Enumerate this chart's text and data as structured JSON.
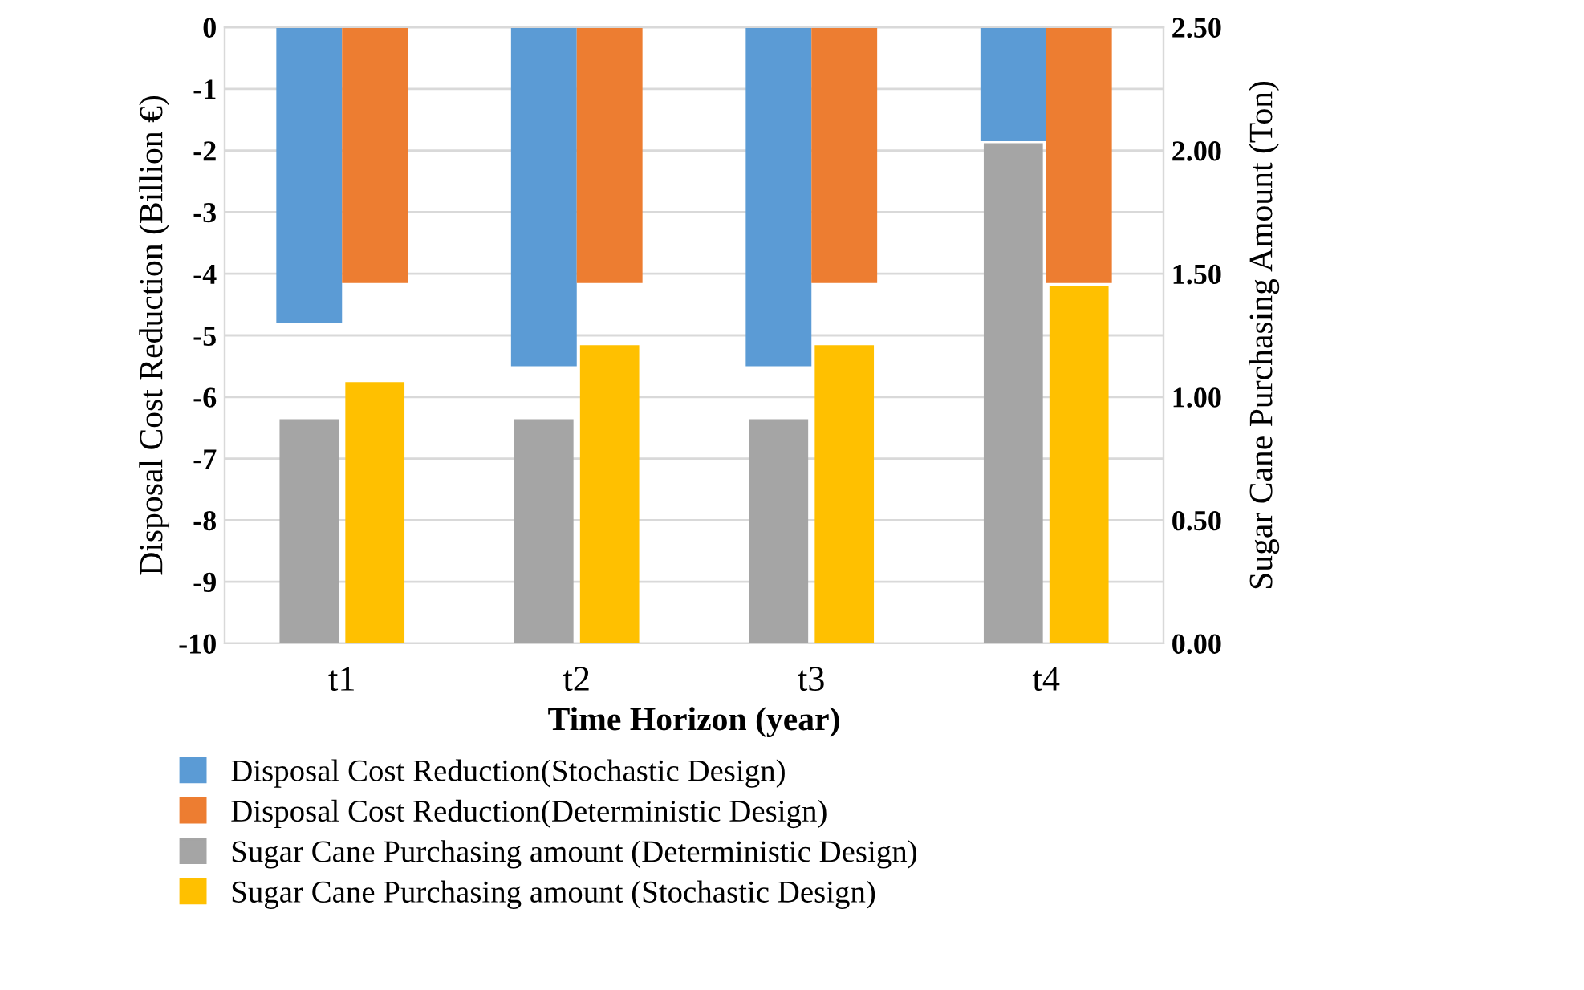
{
  "chart_data": {
    "type": "bar",
    "xlabel": "Time Horizon (year)",
    "ylabel": "Disposal Cost Reduction (Billion €)",
    "y2label": "Sugar Cane Purchasing Amount (Ton)",
    "categories": [
      "t1",
      "t2",
      "t3",
      "t4"
    ],
    "series": [
      {
        "name": "Disposal Cost Reduction(Stochastic Design)",
        "color": "#5b9bd5",
        "values": [
          -4.8,
          -5.5,
          -5.5,
          -1.85
        ]
      },
      {
        "name": "Disposal Cost Reduction(Deterministic Design)",
        "color": "#ed7d31",
        "values": [
          -4.15,
          -4.15,
          -4.15,
          -4.15
        ]
      },
      {
        "name": "Sugar Cane Purchasing amount (Deterministic Design)",
        "color": "#a5a5a5",
        "axis": "y2",
        "values": [
          0.91,
          0.91,
          0.91,
          2.03
        ]
      },
      {
        "name": "Sugar Cane Purchasing amount (Stochastic Design)",
        "color": "#ffc000",
        "axis": "y2",
        "values": [
          1.06,
          1.21,
          1.21,
          1.45
        ]
      }
    ],
    "ylim": [
      -10,
      0
    ],
    "yticks": [
      -10,
      -9,
      -8,
      -7,
      -6,
      -5,
      -4,
      -3,
      -2,
      -1,
      0
    ],
    "y2lim": [
      0,
      2.5
    ],
    "y2ticks": [
      {
        "value": 0,
        "label": "0.00"
      },
      {
        "value": 0.5,
        "label": "0.50"
      },
      {
        "value": 1,
        "label": "1.00"
      },
      {
        "value": 1.5,
        "label": "1.50"
      },
      {
        "value": 2,
        "label": "2.00"
      },
      {
        "value": 2.5,
        "label": "2.50"
      }
    ],
    "grid": "y",
    "legend": "bottom"
  }
}
